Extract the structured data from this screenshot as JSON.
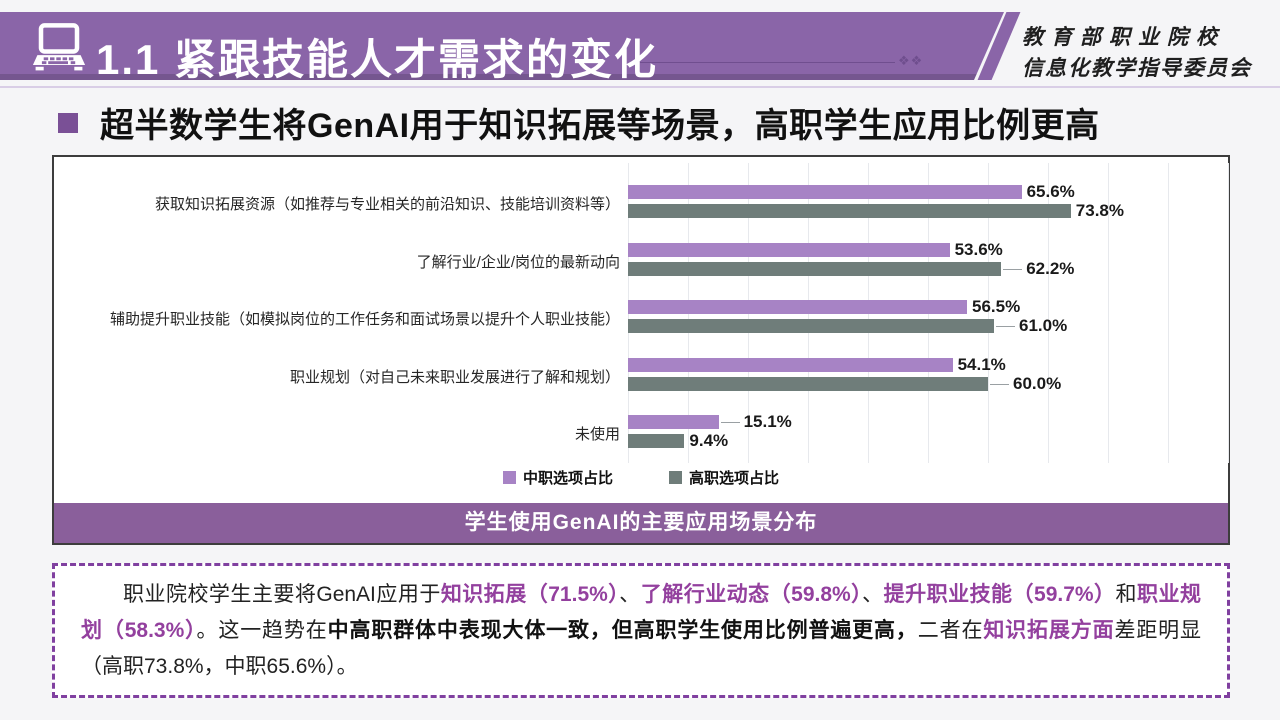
{
  "header": {
    "title": "1.1 紧跟技能人才需求的变化",
    "org_line1": "教育部职业院校",
    "org_line2": "信息化教学指导委员会"
  },
  "headline": "超半数学生将GenAI用于知识拓展等场景，高职学生应用比例更高",
  "chart_data": {
    "type": "bar",
    "orientation": "horizontal",
    "title": "学生使用GenAI的主要应用场景分布",
    "xlabel": "",
    "ylabel": "",
    "xlim": [
      0,
      100
    ],
    "gridline_step_pct": 10,
    "grid": true,
    "legend_position": "bottom",
    "categories": [
      "获取知识拓展资源（如推荐与专业相关的前沿知识、技能培训资料等）",
      "了解行业/企业/岗位的最新动向",
      "辅助提升职业技能（如模拟岗位的工作任务和面试场景以提升个人职业技能）",
      "职业规划（对自己未来职业发展进行了解和规划）",
      "未使用"
    ],
    "series": [
      {
        "name": "中职选项占比",
        "color": "#a783c5",
        "points": [
          {
            "value": 65.6,
            "label": "65.6%",
            "leader": false
          },
          {
            "value": 53.6,
            "label": "53.6%",
            "leader": false
          },
          {
            "value": 56.5,
            "label": "56.5%",
            "leader": false
          },
          {
            "value": 54.1,
            "label": "54.1%",
            "leader": false
          },
          {
            "value": 15.1,
            "label": "15.1%",
            "leader": true
          }
        ]
      },
      {
        "name": "高职选项占比",
        "color": "#6f7d7a",
        "points": [
          {
            "value": 73.8,
            "label": "73.8%",
            "leader": false
          },
          {
            "value": 62.2,
            "label": "62.2%",
            "leader": true
          },
          {
            "value": 61.0,
            "label": "61.0%",
            "leader": true
          },
          {
            "value": 60.0,
            "label": "60.0%",
            "leader": true
          },
          {
            "value": 9.4,
            "label": "9.4%",
            "leader": false
          }
        ]
      }
    ]
  },
  "summary": {
    "segments": [
      {
        "text": "职业院校学生主要将GenAI应用于",
        "style": "normal"
      },
      {
        "text": "知识拓展（71.5%）",
        "style": "purple"
      },
      {
        "text": "、",
        "style": "normal"
      },
      {
        "text": "了解行业动态（59.8%）",
        "style": "purple"
      },
      {
        "text": "、",
        "style": "normal"
      },
      {
        "text": "提升职业技能（59.7%）",
        "style": "purple"
      },
      {
        "text": "和",
        "style": "normal"
      },
      {
        "text": "职业规划（58.3%）",
        "style": "purple"
      },
      {
        "text": "。这一趋势在",
        "style": "normal"
      },
      {
        "text": "中高职群体中表现大体一致，但高职学生使用比例普遍更高，",
        "style": "bold"
      },
      {
        "text": "二者在",
        "style": "normal"
      },
      {
        "text": "知识拓展方面",
        "style": "purple"
      },
      {
        "text": "差距明显（高职73.8%，中职65.6%）。",
        "style": "normal"
      }
    ]
  },
  "colors": {
    "header_purple": "#8a65a8",
    "title_band_purple": "#8a5f9b",
    "bar_zhongzhi_purple": "#a783c5",
    "bar_gaozhi_gray": "#6f7d7a",
    "accent_text_purple": "#93409e",
    "dashed_border_purple": "#8040a0",
    "background": "#f5f5f7"
  }
}
